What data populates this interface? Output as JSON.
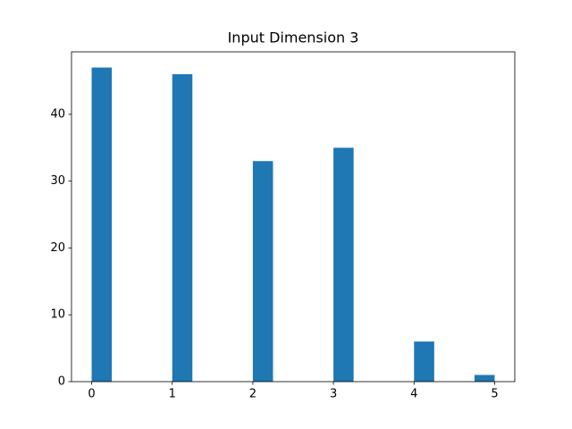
{
  "chart_data": {
    "type": "histogram",
    "title": "Input Dimension 3",
    "bins": [
      0,
      0.25,
      0.5,
      0.75,
      1,
      1.25,
      1.5,
      1.75,
      2,
      2.25,
      2.5,
      2.75,
      3,
      3.25,
      3.5,
      3.75,
      4,
      4.25,
      4.5,
      4.75,
      5
    ],
    "counts": [
      47,
      0,
      0,
      0,
      46,
      0,
      0,
      0,
      33,
      0,
      0,
      0,
      35,
      0,
      0,
      0,
      6,
      0,
      0,
      1
    ],
    "color": "#1f77b4",
    "xlim": [
      -0.25,
      5.25
    ],
    "ylim": [
      0,
      49.35
    ],
    "xticks": [
      0,
      1,
      2,
      3,
      4,
      5
    ],
    "yticks": [
      0,
      10,
      20,
      30,
      40
    ]
  }
}
